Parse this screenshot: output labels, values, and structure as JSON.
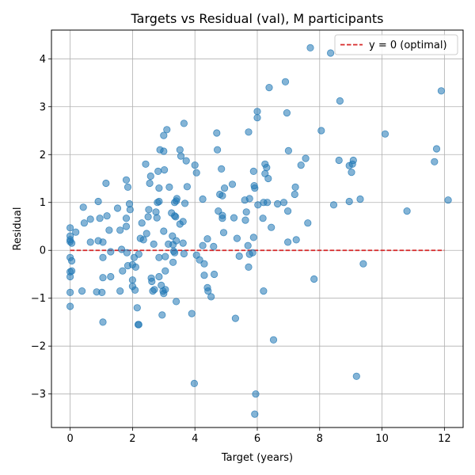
{
  "chart_data": {
    "type": "scatter",
    "title": "Targets vs Residual (val), M participants",
    "xlabel": "Target (years)",
    "ylabel": "Residual",
    "xlim": [
      -0.6,
      12.6
    ],
    "ylim": [
      -3.7,
      4.6
    ],
    "xticks": [
      0,
      2,
      4,
      6,
      8,
      10,
      12
    ],
    "yticks": [
      -3,
      -2,
      -1,
      0,
      1,
      2,
      3,
      4
    ],
    "grid": true,
    "legend_position": "top-right",
    "legend": [
      {
        "label": "y = 0 (optimal)",
        "color": "#d62728",
        "style": "dashed"
      }
    ],
    "reference_line": {
      "y": 0,
      "x_from": 0,
      "x_to": 12,
      "color": "#d62728",
      "style": "dashed"
    },
    "point_color": "#1f77b4",
    "points": [
      [
        0.0,
        0.47
      ],
      [
        0.0,
        0.3
      ],
      [
        0.0,
        0.22
      ],
      [
        0.0,
        0.18
      ],
      [
        0.05,
        0.15
      ],
      [
        0.0,
        -0.15
      ],
      [
        0.05,
        -0.22
      ],
      [
        0.0,
        -0.45
      ],
      [
        0.05,
        -0.43
      ],
      [
        0.0,
        -0.55
      ],
      [
        0.0,
        -0.88
      ],
      [
        0.0,
        -1.17
      ],
      [
        0.18,
        0.38
      ],
      [
        0.42,
        0.9
      ],
      [
        0.45,
        0.57
      ],
      [
        0.65,
        0.65
      ],
      [
        0.65,
        0.17
      ],
      [
        0.38,
        -0.85
      ],
      [
        0.85,
        -0.87
      ],
      [
        0.9,
        1.02
      ],
      [
        0.95,
        0.67
      ],
      [
        0.9,
        0.2
      ],
      [
        1.05,
        0.17
      ],
      [
        1.05,
        -0.15
      ],
      [
        1.05,
        -0.57
      ],
      [
        1.02,
        -0.88
      ],
      [
        1.05,
        -1.5
      ],
      [
        1.15,
        1.4
      ],
      [
        1.18,
        0.72
      ],
      [
        1.25,
        0.42
      ],
      [
        1.3,
        -0.03
      ],
      [
        1.3,
        -0.55
      ],
      [
        1.52,
        0.88
      ],
      [
        1.6,
        0.42
      ],
      [
        1.6,
        -0.85
      ],
      [
        1.65,
        0.02
      ],
      [
        1.68,
        -0.43
      ],
      [
        1.8,
        1.47
      ],
      [
        1.85,
        1.32
      ],
      [
        1.8,
        0.67
      ],
      [
        1.8,
        0.5
      ],
      [
        1.82,
        -0.05
      ],
      [
        1.85,
        -0.32
      ],
      [
        1.9,
        0.97
      ],
      [
        1.92,
        0.85
      ],
      [
        2.0,
        -0.3
      ],
      [
        2.05,
        -0.15
      ],
      [
        2.0,
        -0.62
      ],
      [
        2.0,
        -0.75
      ],
      [
        2.08,
        -0.83
      ],
      [
        2.1,
        -0.35
      ],
      [
        2.15,
        -1.2
      ],
      [
        2.18,
        -1.55
      ],
      [
        2.2,
        -1.55
      ],
      [
        2.2,
        -0.08
      ],
      [
        2.25,
        0.25
      ],
      [
        2.3,
        0.57
      ],
      [
        2.35,
        0.22
      ],
      [
        2.42,
        1.8
      ],
      [
        2.45,
        0.35
      ],
      [
        2.5,
        0.7
      ],
      [
        2.52,
        0.85
      ],
      [
        2.55,
        1.4
      ],
      [
        2.58,
        1.55
      ],
      [
        2.6,
        -0.58
      ],
      [
        2.62,
        -0.65
      ],
      [
        2.65,
        -0.85
      ],
      [
        2.7,
        -0.82
      ],
      [
        2.68,
        0.13
      ],
      [
        2.75,
        0.8
      ],
      [
        2.78,
        0.68
      ],
      [
        2.8,
        1.0
      ],
      [
        2.82,
        1.65
      ],
      [
        2.85,
        1.3
      ],
      [
        2.85,
        1.02
      ],
      [
        2.88,
        2.1
      ],
      [
        2.85,
        -0.15
      ],
      [
        2.85,
        -0.55
      ],
      [
        2.92,
        -0.73
      ],
      [
        2.95,
        -1.35
      ],
      [
        2.98,
        -0.85
      ],
      [
        3.0,
        -0.9
      ],
      [
        3.0,
        2.4
      ],
      [
        3.0,
        2.07
      ],
      [
        3.02,
        1.68
      ],
      [
        3.0,
        0.4
      ],
      [
        3.05,
        -0.13
      ],
      [
        3.05,
        -0.82
      ],
      [
        3.05,
        -0.43
      ],
      [
        3.1,
        2.52
      ],
      [
        3.15,
        0.13
      ],
      [
        3.18,
        1.32
      ],
      [
        3.25,
        0.78
      ],
      [
        3.28,
        0.3
      ],
      [
        3.3,
        0.12
      ],
      [
        3.3,
        -0.25
      ],
      [
        3.32,
        -0.02
      ],
      [
        3.35,
        -0.05
      ],
      [
        3.35,
        1.0
      ],
      [
        3.35,
        0.72
      ],
      [
        3.38,
        0.7
      ],
      [
        3.4,
        0.2
      ],
      [
        3.42,
        1.08
      ],
      [
        3.4,
        1.03
      ],
      [
        3.4,
        -1.07
      ],
      [
        3.52,
        2.1
      ],
      [
        3.55,
        1.97
      ],
      [
        3.52,
        0.55
      ],
      [
        3.62,
        0.6
      ],
      [
        3.62,
        0.15
      ],
      [
        3.65,
        -0.07
      ],
      [
        3.65,
        2.65
      ],
      [
        3.68,
        0.98
      ],
      [
        3.72,
        1.87
      ],
      [
        3.75,
        1.33
      ],
      [
        3.9,
        -1.32
      ],
      [
        3.98,
        -2.78
      ],
      [
        4.0,
        1.78
      ],
      [
        4.05,
        1.62
      ],
      [
        4.05,
        -0.1
      ],
      [
        4.15,
        -0.2
      ],
      [
        4.25,
        1.07
      ],
      [
        4.25,
        0.1
      ],
      [
        4.3,
        -0.28
      ],
      [
        4.3,
        -0.52
      ],
      [
        4.4,
        0.24
      ],
      [
        4.4,
        -0.78
      ],
      [
        4.42,
        -0.85
      ],
      [
        4.52,
        -0.97
      ],
      [
        4.6,
        0.08
      ],
      [
        4.62,
        -0.5
      ],
      [
        4.7,
        2.45
      ],
      [
        4.72,
        2.1
      ],
      [
        4.75,
        0.82
      ],
      [
        4.8,
        1.17
      ],
      [
        4.85,
        1.7
      ],
      [
        4.88,
        1.14
      ],
      [
        4.88,
        0.73
      ],
      [
        4.88,
        0.67
      ],
      [
        4.92,
        0.37
      ],
      [
        4.95,
        1.3
      ],
      [
        5.2,
        1.38
      ],
      [
        5.25,
        0.68
      ],
      [
        5.3,
        -1.42
      ],
      [
        5.35,
        0.25
      ],
      [
        5.42,
        -0.12
      ],
      [
        5.6,
        1.05
      ],
      [
        5.62,
        0.63
      ],
      [
        5.65,
        0.8
      ],
      [
        5.7,
        0.1
      ],
      [
        5.72,
        2.47
      ],
      [
        5.72,
        -0.35
      ],
      [
        5.75,
        1.08
      ],
      [
        5.75,
        -0.08
      ],
      [
        5.85,
        -0.05
      ],
      [
        5.88,
        1.65
      ],
      [
        5.9,
        1.35
      ],
      [
        5.92,
        1.3
      ],
      [
        5.88,
        0.27
      ],
      [
        5.95,
        -3.0
      ],
      [
        5.92,
        -3.42
      ],
      [
        6.0,
        2.9
      ],
      [
        6.0,
        2.77
      ],
      [
        6.02,
        0.95
      ],
      [
        6.18,
        0.67
      ],
      [
        6.2,
        1.0
      ],
      [
        6.2,
        -0.85
      ],
      [
        6.25,
        1.8
      ],
      [
        6.25,
        1.6
      ],
      [
        6.3,
        1.73
      ],
      [
        6.35,
        1.5
      ],
      [
        6.32,
        1.0
      ],
      [
        6.38,
        3.4
      ],
      [
        6.45,
        0.48
      ],
      [
        6.52,
        -1.87
      ],
      [
        6.65,
        0.97
      ],
      [
        6.85,
        1.0
      ],
      [
        6.9,
        3.52
      ],
      [
        6.95,
        2.87
      ],
      [
        7.0,
        2.08
      ],
      [
        6.98,
        0.82
      ],
      [
        6.98,
        0.17
      ],
      [
        7.2,
        1.17
      ],
      [
        7.22,
        1.32
      ],
      [
        7.25,
        0.22
      ],
      [
        7.4,
        1.78
      ],
      [
        7.55,
        1.92
      ],
      [
        7.62,
        0.57
      ],
      [
        7.7,
        4.23
      ],
      [
        7.82,
        -0.6
      ],
      [
        8.05,
        2.5
      ],
      [
        8.35,
        4.12
      ],
      [
        8.45,
        0.95
      ],
      [
        8.65,
        3.12
      ],
      [
        8.62,
        1.88
      ],
      [
        8.95,
        1.77
      ],
      [
        8.95,
        1.02
      ],
      [
        9.02,
        1.63
      ],
      [
        9.05,
        1.8
      ],
      [
        9.08,
        1.88
      ],
      [
        9.18,
        -2.63
      ],
      [
        9.3,
        1.07
      ],
      [
        9.4,
        -0.28
      ],
      [
        10.1,
        2.43
      ],
      [
        10.8,
        0.82
      ],
      [
        11.68,
        1.85
      ],
      [
        11.75,
        2.12
      ],
      [
        11.9,
        3.33
      ],
      [
        12.12,
        1.05
      ]
    ]
  }
}
